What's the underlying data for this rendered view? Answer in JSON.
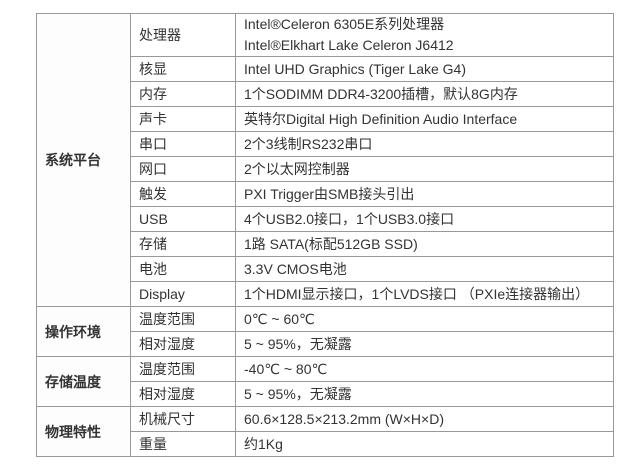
{
  "colors": {
    "border": "#999999",
    "text": "#333333",
    "background": "#ffffff"
  },
  "table": {
    "sections": [
      {
        "name": "系统平台",
        "rows": [
          {
            "label": "处理器",
            "values": [
              "Intel®Celeron 6305E系列处理器",
              "Intel®Elkhart Lake Celeron J6412"
            ]
          },
          {
            "label": "核显",
            "values": [
              "Intel UHD Graphics (Tiger Lake G4)"
            ]
          },
          {
            "label": "内存",
            "values": [
              "1个SODIMM DDR4-3200插槽，默认8G内存"
            ]
          },
          {
            "label": "声卡",
            "values": [
              "英特尔Digital High Definition Audio Interface"
            ]
          },
          {
            "label": "串口",
            "values": [
              "2个3线制RS232串口"
            ]
          },
          {
            "label": "网口",
            "values": [
              "2个以太网控制器"
            ]
          },
          {
            "label": "触发",
            "values": [
              "PXI Trigger由SMB接头引出"
            ]
          },
          {
            "label": "USB",
            "values": [
              "4个USB2.0接口，1个USB3.0接口"
            ]
          },
          {
            "label": "存储",
            "values": [
              "1路 SATA(标配512GB SSD)"
            ]
          },
          {
            "label": "电池",
            "values": [
              "3.3V CMOS电池"
            ]
          },
          {
            "label": "Display",
            "values": [
              "1个HDMI显示接口，1个LVDS接口 （PXIe连接器输出）"
            ]
          }
        ]
      },
      {
        "name": "操作环境",
        "rows": [
          {
            "label": "温度范围",
            "values": [
              "0℃ ~ 60℃"
            ]
          },
          {
            "label": "相对湿度",
            "values": [
              "5 ~ 95%，无凝露"
            ]
          }
        ]
      },
      {
        "name": "存储温度",
        "rows": [
          {
            "label": "温度范围",
            "values": [
              "-40℃ ~ 80℃"
            ]
          },
          {
            "label": "相对湿度",
            "values": [
              "5 ~ 95%，无凝露"
            ]
          }
        ]
      },
      {
        "name": "物理特性",
        "rows": [
          {
            "label": "机械尺寸",
            "values": [
              "60.6×128.5×213.2mm (W×H×D)"
            ]
          },
          {
            "label": "重量",
            "values": [
              "约1Kg"
            ]
          }
        ]
      }
    ]
  }
}
